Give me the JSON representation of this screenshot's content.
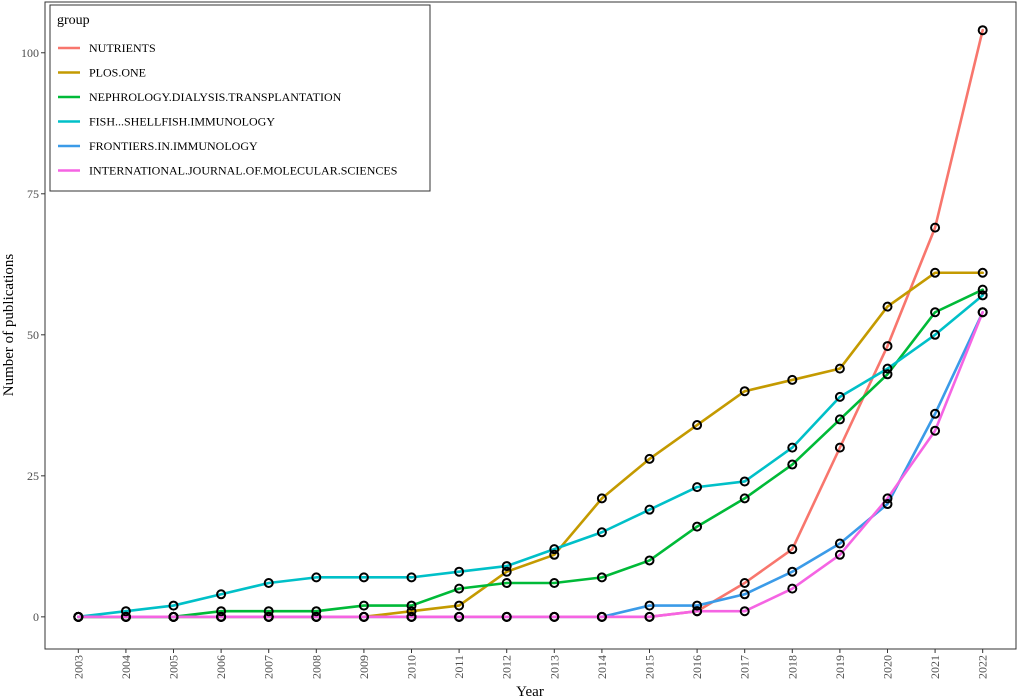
{
  "chart_data": {
    "type": "line",
    "title": "",
    "xlabel": "Year",
    "ylabel": "Number of publications",
    "legend_title": "group",
    "legend_position": "top-left",
    "grid": false,
    "markers": "open-circle",
    "x": [
      2003,
      2004,
      2005,
      2006,
      2007,
      2008,
      2009,
      2010,
      2011,
      2012,
      2013,
      2014,
      2015,
      2016,
      2017,
      2018,
      2019,
      2020,
      2021,
      2022
    ],
    "x_tick_labels": [
      "2003",
      "2004",
      "2005",
      "2006",
      "2007",
      "2008",
      "2009",
      "2010",
      "2011",
      "2012",
      "2013",
      "2014",
      "2015",
      "2016",
      "2017",
      "2018",
      "2019",
      "2020",
      "2021",
      "2022"
    ],
    "xlim": [
      2002.3,
      2022.7
    ],
    "ylim": [
      -5.7,
      109
    ],
    "y_ticks": [
      0,
      25,
      50,
      75,
      100
    ],
    "y_tick_labels": [
      "0",
      "25",
      "50",
      "75",
      "100"
    ],
    "series": [
      {
        "name": "NUTRIENTS",
        "color": "#F8766D",
        "values": [
          0,
          0,
          0,
          0,
          0,
          0,
          0,
          0,
          0,
          0,
          0,
          0,
          0,
          1,
          6,
          12,
          30,
          48,
          69,
          104
        ]
      },
      {
        "name": "PLOS.ONE",
        "color": "#C49A00",
        "values": [
          0,
          0,
          0,
          0,
          0,
          0,
          0,
          1,
          2,
          8,
          11,
          21,
          28,
          34,
          40,
          42,
          44,
          55,
          61,
          61
        ]
      },
      {
        "name": "NEPHROLOGY.DIALYSIS.TRANSPLANTATION",
        "color": "#00BA38",
        "values": [
          0,
          0,
          0,
          1,
          1,
          1,
          2,
          2,
          5,
          6,
          6,
          7,
          10,
          16,
          21,
          27,
          35,
          43,
          54,
          58
        ]
      },
      {
        "name": "FISH...SHELLFISH.IMMUNOLOGY",
        "color": "#00C0C8",
        "values": [
          0,
          1,
          2,
          4,
          6,
          7,
          7,
          7,
          8,
          9,
          12,
          15,
          19,
          23,
          24,
          30,
          39,
          44,
          50,
          57
        ]
      },
      {
        "name": "FRONTIERS.IN.IMMUNOLOGY",
        "color": "#3B9BE8",
        "values": [
          0,
          0,
          0,
          0,
          0,
          0,
          0,
          0,
          0,
          0,
          0,
          0,
          2,
          2,
          4,
          8,
          13,
          20,
          36,
          54
        ]
      },
      {
        "name": "INTERNATIONAL.JOURNAL.OF.MOLECULAR.SCIENCES",
        "color": "#F564E3",
        "values": [
          0,
          0,
          0,
          0,
          0,
          0,
          0,
          0,
          0,
          0,
          0,
          0,
          0,
          1,
          1,
          5,
          11,
          21,
          33,
          54
        ]
      }
    ]
  }
}
